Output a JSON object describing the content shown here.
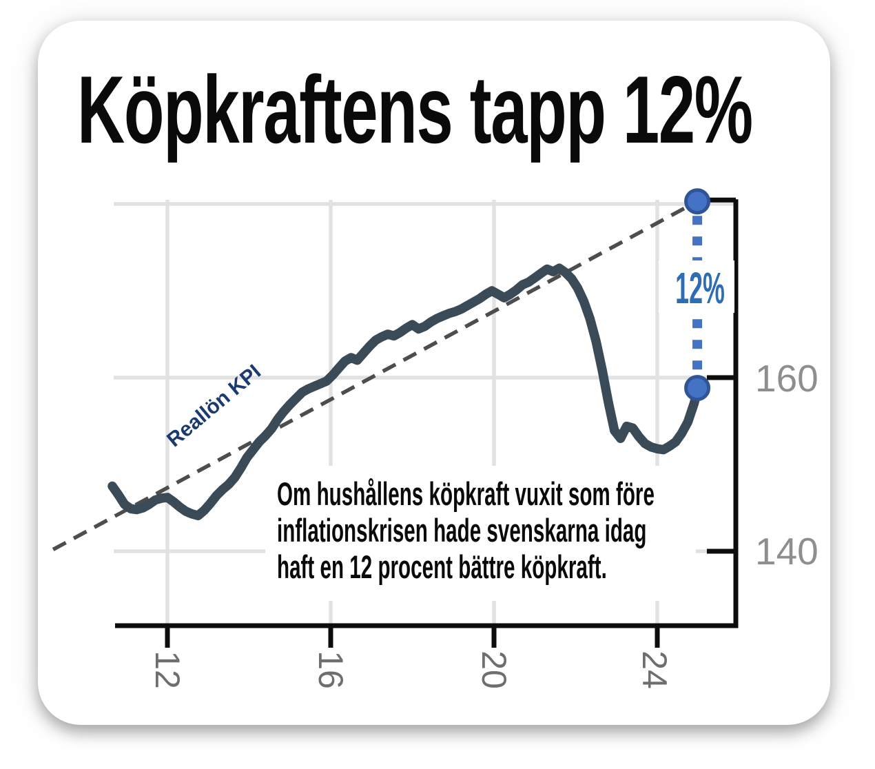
{
  "page": {
    "title": "Köpkraftens tapp 12%"
  },
  "chart_data": {
    "type": "line",
    "title": "Köpkraftens tapp 12%",
    "series": [
      {
        "name": "Reallön KPI",
        "points": [
          [
            10.65,
            147.5
          ],
          [
            10.8,
            146.5
          ],
          [
            10.95,
            145.4
          ],
          [
            11.1,
            144.9
          ],
          [
            11.25,
            144.8
          ],
          [
            11.4,
            145.0
          ],
          [
            11.55,
            145.4
          ],
          [
            11.7,
            145.9
          ],
          [
            11.85,
            146.1
          ],
          [
            12.0,
            146.2
          ],
          [
            12.15,
            145.7
          ],
          [
            12.3,
            145.1
          ],
          [
            12.45,
            144.6
          ],
          [
            12.6,
            144.3
          ],
          [
            12.75,
            144.1
          ],
          [
            12.9,
            144.7
          ],
          [
            13.05,
            145.5
          ],
          [
            13.2,
            146.4
          ],
          [
            13.35,
            147.1
          ],
          [
            13.5,
            147.7
          ],
          [
            13.65,
            148.5
          ],
          [
            13.8,
            149.6
          ],
          [
            13.95,
            150.8
          ],
          [
            14.1,
            151.7
          ],
          [
            14.25,
            152.6
          ],
          [
            14.4,
            153.3
          ],
          [
            14.55,
            154.1
          ],
          [
            14.7,
            155.2
          ],
          [
            14.85,
            156.1
          ],
          [
            15.0,
            156.9
          ],
          [
            15.15,
            157.6
          ],
          [
            15.3,
            158.3
          ],
          [
            15.45,
            158.7
          ],
          [
            15.6,
            159.0
          ],
          [
            15.75,
            159.3
          ],
          [
            15.9,
            159.6
          ],
          [
            16.05,
            160.3
          ],
          [
            16.2,
            161.1
          ],
          [
            16.35,
            161.9
          ],
          [
            16.5,
            162.3
          ],
          [
            16.65,
            162.0
          ],
          [
            16.8,
            162.8
          ],
          [
            16.95,
            163.6
          ],
          [
            17.1,
            164.3
          ],
          [
            17.25,
            164.7
          ],
          [
            17.4,
            165.0
          ],
          [
            17.55,
            164.8
          ],
          [
            17.7,
            165.2
          ],
          [
            17.85,
            165.7
          ],
          [
            18.0,
            166.1
          ],
          [
            18.15,
            165.6
          ],
          [
            18.3,
            165.9
          ],
          [
            18.45,
            166.4
          ],
          [
            18.6,
            166.8
          ],
          [
            18.75,
            167.1
          ],
          [
            18.9,
            167.4
          ],
          [
            19.05,
            167.6
          ],
          [
            19.2,
            167.9
          ],
          [
            19.35,
            168.3
          ],
          [
            19.5,
            168.7
          ],
          [
            19.65,
            169.1
          ],
          [
            19.8,
            169.6
          ],
          [
            19.95,
            170.0
          ],
          [
            20.1,
            169.6
          ],
          [
            20.25,
            169.2
          ],
          [
            20.4,
            169.6
          ],
          [
            20.55,
            170.1
          ],
          [
            20.7,
            170.7
          ],
          [
            20.85,
            171.0
          ],
          [
            21.0,
            171.5
          ],
          [
            21.15,
            172.0
          ],
          [
            21.3,
            172.5
          ],
          [
            21.45,
            172.2
          ],
          [
            21.6,
            172.6
          ],
          [
            21.75,
            172.1
          ],
          [
            21.9,
            171.4
          ],
          [
            22.05,
            170.3
          ],
          [
            22.2,
            168.8
          ],
          [
            22.35,
            166.8
          ],
          [
            22.5,
            164.2
          ],
          [
            22.65,
            160.9
          ],
          [
            22.8,
            157.2
          ],
          [
            22.95,
            153.9
          ],
          [
            23.1,
            153.0
          ],
          [
            23.25,
            154.4
          ],
          [
            23.4,
            154.2
          ],
          [
            23.55,
            153.2
          ],
          [
            23.7,
            152.4
          ],
          [
            23.85,
            152.0
          ],
          [
            24.0,
            151.8
          ],
          [
            24.15,
            151.7
          ],
          [
            24.3,
            152.1
          ],
          [
            24.45,
            152.6
          ],
          [
            24.6,
            153.6
          ],
          [
            24.75,
            154.9
          ],
          [
            24.9,
            157.0
          ],
          [
            25.0,
            158.8
          ]
        ]
      }
    ],
    "trend_line": {
      "style": "dashed",
      "points": [
        [
          9.2,
          140.2
        ],
        [
          24.98,
          180.3
        ]
      ]
    },
    "annotation": {
      "label": "12%",
      "year": 24.98,
      "top_value": 180.3,
      "bottom_value": 158.8
    },
    "x_ticks": [
      12,
      16,
      20,
      24
    ],
    "x_tick_labels": [
      "12",
      "16",
      "20",
      "24"
    ],
    "y_ticks_labeled": [
      160,
      140
    ],
    "y_tick_labels": [
      "160",
      "140"
    ],
    "y_gridlines": [
      180,
      160,
      140
    ],
    "xlim": [
      10.6,
      25.2
    ],
    "ylim_visible": [
      131,
      181
    ],
    "grid": "on",
    "y_axis_side": "right",
    "series_label": "Reallön KPI",
    "note_lines": [
      "Om hushållens köpkraft vuxit som före",
      "inflationskrisen hade svenskarna idag",
      "haft en 12 procent bättre köpkraft."
    ]
  },
  "colors": {
    "kpi_line": "#3a4b57",
    "trend_line": "#4d4d4d",
    "grid": "#e2e2e2",
    "axis": "#0d0d0d",
    "x_tick_label": "#6e6e6e",
    "y_tick_label": "#8e8e8e",
    "annotation_blue": "#4472c4",
    "annotation_label_blue": "#2e6db4",
    "dot_border": "#2f5597",
    "series_label_navy": "#1a3a70",
    "text": "#0a0a0a"
  }
}
